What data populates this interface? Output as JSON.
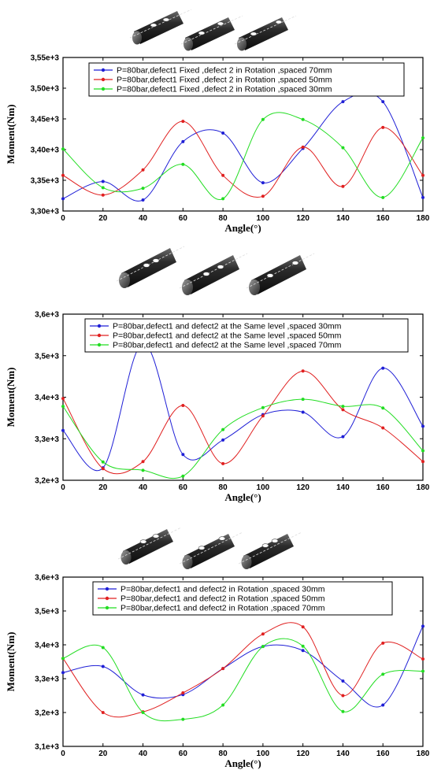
{
  "chart_data": [
    {
      "type": "line",
      "x": [
        0,
        20,
        40,
        60,
        80,
        100,
        120,
        140,
        160,
        180
      ],
      "xlabel": "Angle(°)",
      "ylabel": "Moment(Nm)",
      "xlim": [
        0,
        180
      ],
      "ylim": [
        3300,
        3550
      ],
      "xticks": [
        "0",
        "20",
        "40",
        "60",
        "80",
        "100",
        "120",
        "140",
        "160",
        "180"
      ],
      "yticks": [
        "3,30e+3",
        "3,35e+3",
        "3,40e+3",
        "3,45e+3",
        "3,50e+3",
        "3,55e+3"
      ],
      "grid": false,
      "legend_position": "top-center",
      "series": [
        {
          "name": "P=80bar,defect1 Fixed ,defect 2 in Rotation ,spaced 70mm",
          "color": "#1f1fd6",
          "values": [
            3320,
            3348,
            3318,
            3413,
            3427,
            3346,
            3402,
            3478,
            3478,
            3322
          ]
        },
        {
          "name": "P=80bar,defect1 Fixed ,defect 2 in Rotation ,spaced 50mm",
          "color": "#e02020",
          "values": [
            3358,
            3326,
            3367,
            3446,
            3358,
            3324,
            3404,
            3340,
            3436,
            3358
          ]
        },
        {
          "name": "P=80bar,defect1 Fixed ,defect 2 in Rotation ,spaced 30mm",
          "color": "#22dd22",
          "values": [
            3401,
            3338,
            3337,
            3376,
            3320,
            3449,
            3449,
            3403,
            3322,
            3419
          ]
        }
      ]
    },
    {
      "type": "line",
      "x": [
        0,
        20,
        40,
        60,
        80,
        100,
        120,
        140,
        160,
        180
      ],
      "xlabel": "Angle(°)",
      "ylabel": "Moment(Nm)",
      "xlim": [
        0,
        180
      ],
      "ylim": [
        3200,
        3600
      ],
      "xticks": [
        "0",
        "20",
        "40",
        "60",
        "80",
        "100",
        "120",
        "140",
        "160",
        "180"
      ],
      "yticks": [
        "3,2e+3",
        "3,3e+3",
        "3,4e+3",
        "3,5e+3",
        "3,6e+3"
      ],
      "grid": false,
      "legend_position": "top-center",
      "series": [
        {
          "name": "P=80bar,defect1 and defect2 at the Same level ,spaced 30mm",
          "color": "#1f1fd6",
          "values": [
            3320,
            3230,
            3530,
            3262,
            3297,
            3358,
            3364,
            3305,
            3470,
            3330
          ]
        },
        {
          "name": "P=80bar,defect1 and defect2 at the Same level ,spaced 50mm",
          "color": "#e02020",
          "values": [
            3397,
            3228,
            3245,
            3380,
            3240,
            3355,
            3463,
            3370,
            3326,
            3245
          ]
        },
        {
          "name": "P=80bar,defect1 and defect2 at the Same level ,spaced 70mm",
          "color": "#22dd22",
          "values": [
            3378,
            3244,
            3224,
            3210,
            3322,
            3375,
            3395,
            3378,
            3374,
            3271
          ]
        }
      ]
    },
    {
      "type": "line",
      "x": [
        0,
        20,
        40,
        60,
        80,
        100,
        120,
        140,
        160,
        180
      ],
      "xlabel": "Angle(°)",
      "ylabel": "Moment(Nm)",
      "xlim": [
        0,
        180
      ],
      "ylim": [
        3100,
        3600
      ],
      "xticks": [
        "0",
        "20",
        "40",
        "60",
        "80",
        "100",
        "120",
        "140",
        "160",
        "180"
      ],
      "yticks": [
        "3,1e+3",
        "3,2e+3",
        "3,3e+3",
        "3,4e+3",
        "3,5e+3",
        "3,6e+3"
      ],
      "grid": false,
      "legend_position": "top-center",
      "series": [
        {
          "name": "P=80bar,defect1 and defect2 in Rotation ,spaced 30mm",
          "color": "#1f1fd6",
          "values": [
            3318,
            3336,
            3252,
            3253,
            3330,
            3395,
            3383,
            3293,
            3222,
            3455
          ]
        },
        {
          "name": "P=80bar,defect1 and defect2 in Rotation ,spaced 50mm",
          "color": "#e02020",
          "values": [
            3360,
            3200,
            3202,
            3258,
            3330,
            3432,
            3453,
            3250,
            3405,
            3358
          ]
        },
        {
          "name": "P=80bar,defect1 and defect2 in Rotation ,spaced 70mm",
          "color": "#22dd22",
          "values": [
            3360,
            3392,
            3200,
            3180,
            3222,
            3395,
            3396,
            3203,
            3313,
            3322
          ]
        }
      ]
    }
  ]
}
